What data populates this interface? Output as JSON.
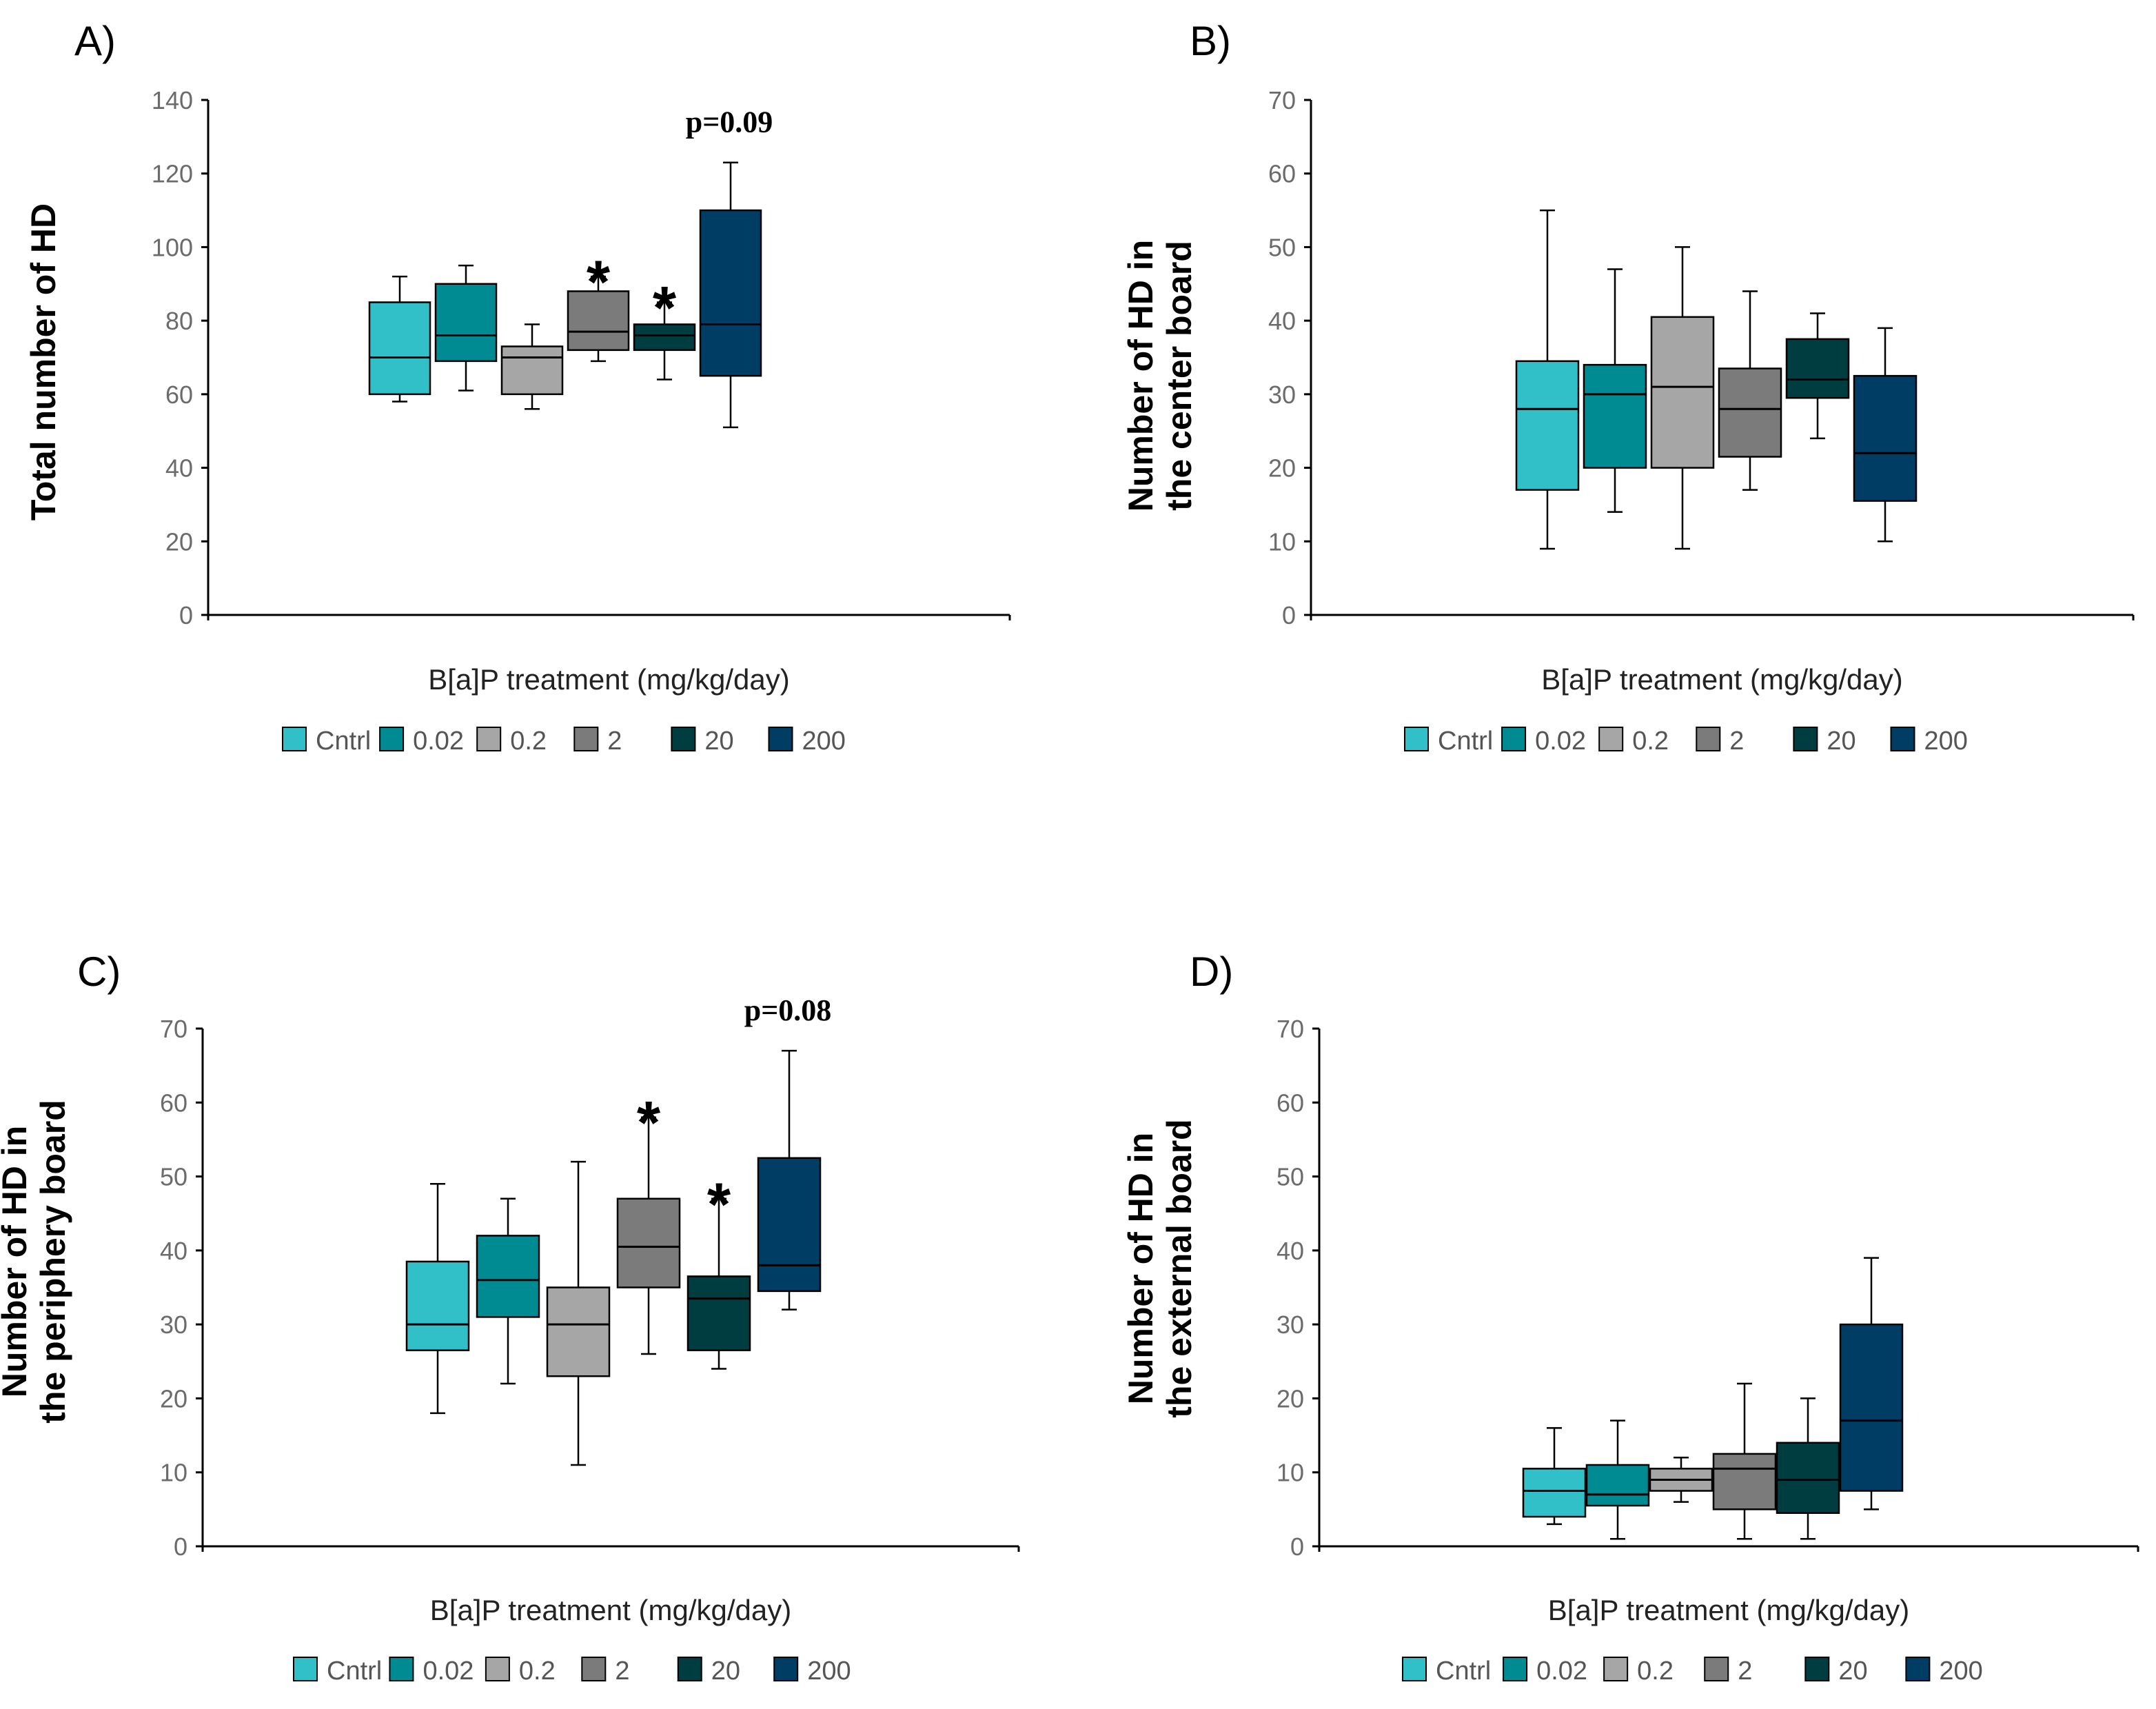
{
  "colors": {
    "Cntrl": "#31c0c8",
    "0.02": "#008a92",
    "0.2": "#a6a6a6",
    "2": "#7b7b7b",
    "20": "#003d40",
    "200": "#003d64"
  },
  "chart_data": [
    {
      "type": "box",
      "panel": "A)",
      "ylabel": "Total number of HD",
      "ylabel_lines": [
        "Total number of HD"
      ],
      "xlabel": "B[a]P treatment  (mg/kg/day)",
      "ylim": [
        0,
        140
      ],
      "yticks": [
        0,
        20,
        40,
        60,
        80,
        100,
        120,
        140
      ],
      "categories": [
        "Cntrl",
        "0.02",
        "0.2",
        "2",
        "20",
        "200"
      ],
      "boxes": [
        {
          "name": "Cntrl",
          "min": 58,
          "q1": 60,
          "median": 70,
          "q3": 85,
          "max": 92
        },
        {
          "name": "0.02",
          "min": 61,
          "q1": 69,
          "median": 76,
          "q3": 90,
          "max": 95
        },
        {
          "name": "0.2",
          "min": 56,
          "q1": 60,
          "median": 70,
          "q3": 73,
          "max": 79
        },
        {
          "name": "2",
          "min": 69,
          "q1": 72,
          "median": 77,
          "q3": 88,
          "max": 92
        },
        {
          "name": "20",
          "min": 64,
          "q1": 72,
          "median": 76,
          "q3": 79,
          "max": 85
        },
        {
          "name": "200",
          "min": 51,
          "q1": 65,
          "median": 79,
          "q3": 110,
          "max": 123
        }
      ],
      "annotations": [
        {
          "text": "p=0.09",
          "category": "200",
          "type": "p"
        },
        {
          "text": "*",
          "category": "2",
          "type": "star"
        },
        {
          "text": "*",
          "category": "20",
          "type": "star"
        }
      ],
      "legend": [
        "Cntrl",
        "0.02",
        "0.2",
        "2",
        "20",
        "200"
      ]
    },
    {
      "type": "box",
      "panel": "B)",
      "ylabel": "Number of HD in the center board",
      "ylabel_lines": [
        "Number of HD in",
        "the center board"
      ],
      "xlabel": "B[a]P treatment  (mg/kg/day)",
      "ylim": [
        0,
        70
      ],
      "yticks": [
        0,
        10,
        20,
        30,
        40,
        50,
        60,
        70
      ],
      "categories": [
        "Cntrl",
        "0.02",
        "0.2",
        "2",
        "20",
        "200"
      ],
      "boxes": [
        {
          "name": "Cntrl",
          "min": 9,
          "q1": 17,
          "median": 28,
          "q3": 34.5,
          "max": 55
        },
        {
          "name": "0.02",
          "min": 14,
          "q1": 20,
          "median": 30,
          "q3": 34,
          "max": 47
        },
        {
          "name": "0.2",
          "min": 9,
          "q1": 20,
          "median": 31,
          "q3": 40.5,
          "max": 50
        },
        {
          "name": "2",
          "min": 17,
          "q1": 21.5,
          "median": 28,
          "q3": 33.5,
          "max": 44
        },
        {
          "name": "20",
          "min": 24,
          "q1": 29.5,
          "median": 32,
          "q3": 37.5,
          "max": 41
        },
        {
          "name": "200",
          "min": 10,
          "q1": 15.5,
          "median": 22,
          "q3": 32.5,
          "max": 39
        }
      ],
      "annotations": [],
      "legend": [
        "Cntrl",
        "0.02",
        "0.2",
        "2",
        "20",
        "200"
      ]
    },
    {
      "type": "box",
      "panel": "C)",
      "ylabel": "Number of HD in the periphery board",
      "ylabel_lines": [
        "Number of HD in",
        "the periphery board"
      ],
      "xlabel": "B[a]P treatment  (mg/kg/day)",
      "ylim": [
        0,
        70
      ],
      "yticks": [
        0,
        10,
        20,
        30,
        40,
        50,
        60,
        70
      ],
      "categories": [
        "Cntrl",
        "0.02",
        "0.2",
        "2",
        "20",
        "200"
      ],
      "boxes": [
        {
          "name": "Cntrl",
          "min": 18,
          "q1": 26.5,
          "median": 30,
          "q3": 38.5,
          "max": 49
        },
        {
          "name": "0.02",
          "min": 22,
          "q1": 31,
          "median": 36,
          "q3": 42,
          "max": 47
        },
        {
          "name": "0.2",
          "min": 11,
          "q1": 23,
          "median": 30,
          "q3": 35,
          "max": 52
        },
        {
          "name": "2",
          "min": 26,
          "q1": 35,
          "median": 40.5,
          "q3": 47,
          "max": 58
        },
        {
          "name": "20",
          "min": 24,
          "q1": 26.5,
          "median": 33.5,
          "q3": 36.5,
          "max": 47
        },
        {
          "name": "200",
          "min": 32,
          "q1": 34.5,
          "median": 38,
          "q3": 52.5,
          "max": 67
        }
      ],
      "annotations": [
        {
          "text": "p=0.08",
          "category": "200",
          "type": "p"
        },
        {
          "text": "*",
          "category": "2",
          "type": "star"
        },
        {
          "text": "*",
          "category": "20",
          "type": "star"
        }
      ],
      "legend": [
        "Cntrl",
        "0.02",
        "0.2",
        "2",
        "20",
        "200"
      ]
    },
    {
      "type": "box",
      "panel": "D)",
      "ylabel": "Number of HD in the external board",
      "ylabel_lines": [
        "Number of HD in",
        "the external board"
      ],
      "xlabel": "B[a]P treatment  (mg/kg/day)",
      "ylim": [
        0,
        70
      ],
      "yticks": [
        0,
        10,
        20,
        30,
        40,
        50,
        60,
        70
      ],
      "categories": [
        "Cntrl",
        "0.02",
        "0.2",
        "2",
        "20",
        "200"
      ],
      "boxes": [
        {
          "name": "Cntrl",
          "min": 3,
          "q1": 4,
          "median": 7.5,
          "q3": 10.5,
          "max": 16
        },
        {
          "name": "0.02",
          "min": 1,
          "q1": 5.5,
          "median": 7,
          "q3": 11,
          "max": 17
        },
        {
          "name": "0.2",
          "min": 6,
          "q1": 7.5,
          "median": 9,
          "q3": 10.5,
          "max": 12
        },
        {
          "name": "2",
          "min": 1,
          "q1": 5,
          "median": 10.5,
          "q3": 12.5,
          "max": 22
        },
        {
          "name": "20",
          "min": 1,
          "q1": 4.5,
          "median": 9,
          "q3": 14,
          "max": 20
        },
        {
          "name": "200",
          "min": 5,
          "q1": 7.5,
          "median": 17,
          "q3": 30,
          "max": 39
        }
      ],
      "annotations": [],
      "legend": [
        "Cntrl",
        "0.02",
        "0.2",
        "2",
        "20",
        "200"
      ]
    }
  ]
}
